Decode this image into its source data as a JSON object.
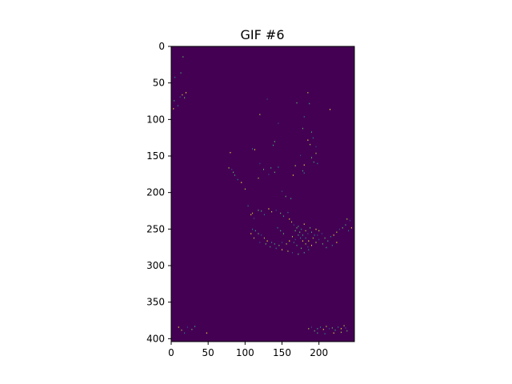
{
  "chart_data": {
    "type": "heatmap",
    "title": "GIF #6",
    "xlabel": "",
    "ylabel": "",
    "image_extent": {
      "x": [
        0,
        248
      ],
      "y": [
        0,
        404
      ]
    },
    "x_ticks": [
      0,
      50,
      100,
      150,
      200
    ],
    "y_ticks": [
      0,
      50,
      100,
      150,
      200,
      250,
      300,
      350,
      400
    ],
    "y_axis_inverted": true,
    "grid": false,
    "colormap": "viridis",
    "background_color": "#440154",
    "point_colors": [
      "#5ec962",
      "#35b779",
      "#21918c",
      "#fde725",
      "#b5de2b",
      "#3b528b"
    ],
    "points": [
      [
        16,
        14
      ],
      [
        13,
        36
      ],
      [
        5,
        42
      ],
      [
        20,
        63
      ],
      [
        15,
        66
      ],
      [
        12,
        69
      ],
      [
        18,
        70
      ],
      [
        4,
        74
      ],
      [
        9,
        81
      ],
      [
        3,
        85
      ],
      [
        185,
        63
      ],
      [
        130,
        72
      ],
      [
        170,
        77
      ],
      [
        187,
        78
      ],
      [
        180,
        96
      ],
      [
        215,
        86
      ],
      [
        120,
        93
      ],
      [
        145,
        105
      ],
      [
        178,
        112
      ],
      [
        190,
        117
      ],
      [
        192,
        125
      ],
      [
        185,
        128
      ],
      [
        188,
        134
      ],
      [
        196,
        137
      ],
      [
        140,
        130
      ],
      [
        138,
        135
      ],
      [
        110,
        140
      ],
      [
        113,
        141
      ],
      [
        196,
        146
      ],
      [
        175,
        149
      ],
      [
        190,
        152
      ],
      [
        193,
        158
      ],
      [
        198,
        160
      ],
      [
        180,
        162
      ],
      [
        168,
        163
      ],
      [
        120,
        160
      ],
      [
        125,
        168
      ],
      [
        135,
        166
      ],
      [
        145,
        165
      ],
      [
        80,
        145
      ],
      [
        78,
        166
      ],
      [
        82,
        168
      ],
      [
        84,
        172
      ],
      [
        86,
        176
      ],
      [
        90,
        182
      ],
      [
        95,
        186
      ],
      [
        118,
        180
      ],
      [
        132,
        175
      ],
      [
        140,
        172
      ],
      [
        178,
        170
      ],
      [
        180,
        173
      ],
      [
        165,
        176
      ],
      [
        100,
        195
      ],
      [
        150,
        198
      ],
      [
        155,
        205
      ],
      [
        162,
        208
      ],
      [
        104,
        218
      ],
      [
        108,
        230
      ],
      [
        110,
        228
      ],
      [
        112,
        235
      ],
      [
        118,
        224
      ],
      [
        122,
        225
      ],
      [
        126,
        230
      ],
      [
        132,
        222
      ],
      [
        136,
        226
      ],
      [
        142,
        224
      ],
      [
        148,
        228
      ],
      [
        152,
        232
      ],
      [
        158,
        227
      ],
      [
        160,
        236
      ],
      [
        163,
        240
      ],
      [
        166,
        244
      ],
      [
        170,
        248
      ],
      [
        172,
        246
      ],
      [
        176,
        250
      ],
      [
        180,
        243
      ],
      [
        182,
        252
      ],
      [
        185,
        256
      ],
      [
        188,
        248
      ],
      [
        190,
        254
      ],
      [
        194,
        258
      ],
      [
        196,
        250
      ],
      [
        200,
        252
      ],
      [
        204,
        256
      ],
      [
        208,
        262
      ],
      [
        212,
        266
      ],
      [
        216,
        260
      ],
      [
        220,
        258
      ],
      [
        224,
        254
      ],
      [
        228,
        250
      ],
      [
        232,
        248
      ],
      [
        236,
        244
      ],
      [
        240,
        252
      ],
      [
        244,
        248
      ],
      [
        238,
        236
      ],
      [
        242,
        238
      ],
      [
        168,
        252
      ],
      [
        172,
        258
      ],
      [
        175,
        262
      ],
      [
        178,
        266
      ],
      [
        182,
        270
      ],
      [
        185,
        274
      ],
      [
        176,
        276
      ],
      [
        170,
        272
      ],
      [
        166,
        268
      ],
      [
        160,
        266
      ],
      [
        156,
        270
      ],
      [
        150,
        268
      ],
      [
        146,
        272
      ],
      [
        140,
        270
      ],
      [
        136,
        268
      ],
      [
        130,
        266
      ],
      [
        126,
        262
      ],
      [
        122,
        258
      ],
      [
        118,
        256
      ],
      [
        114,
        252
      ],
      [
        110,
        250
      ],
      [
        108,
        256
      ],
      [
        112,
        262
      ],
      [
        120,
        268
      ],
      [
        128,
        270
      ],
      [
        134,
        274
      ],
      [
        142,
        276
      ],
      [
        150,
        278
      ],
      [
        158,
        280
      ],
      [
        164,
        282
      ],
      [
        172,
        284
      ],
      [
        180,
        282
      ],
      [
        186,
        278
      ],
      [
        190,
        272
      ],
      [
        196,
        268
      ],
      [
        200,
        264
      ],
      [
        205,
        270
      ],
      [
        210,
        275
      ],
      [
        218,
        272
      ],
      [
        224,
        268
      ],
      [
        164,
        260
      ],
      [
        168,
        264
      ],
      [
        174,
        254
      ],
      [
        178,
        258
      ],
      [
        182,
        262
      ],
      [
        186,
        266
      ],
      [
        192,
        262
      ],
      [
        198,
        258
      ],
      [
        152,
        256
      ],
      [
        148,
        252
      ],
      [
        144,
        248
      ],
      [
        10,
        384
      ],
      [
        14,
        388
      ],
      [
        22,
        384
      ],
      [
        28,
        387
      ],
      [
        32,
        383
      ],
      [
        18,
        392
      ],
      [
        48,
        392
      ],
      [
        186,
        386
      ],
      [
        190,
        384
      ],
      [
        194,
        389
      ],
      [
        198,
        386
      ],
      [
        202,
        384
      ],
      [
        206,
        387
      ],
      [
        210,
        383
      ],
      [
        214,
        386
      ],
      [
        218,
        385
      ],
      [
        222,
        388
      ],
      [
        226,
        384
      ],
      [
        230,
        386
      ],
      [
        234,
        382
      ],
      [
        236,
        385
      ],
      [
        238,
        389
      ],
      [
        198,
        392
      ],
      [
        208,
        393
      ],
      [
        220,
        392
      ],
      [
        230,
        391
      ]
    ]
  }
}
